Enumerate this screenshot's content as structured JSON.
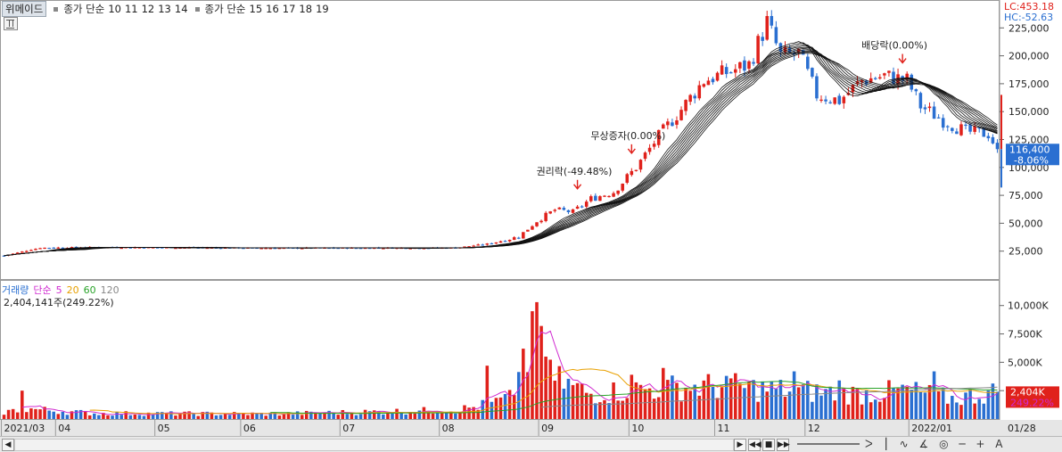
{
  "header": {
    "stock_name": "위메이드",
    "ma_label": "종가 단순",
    "ma_set1": [
      "10",
      "11",
      "12",
      "13",
      "14"
    ],
    "ma_set2": [
      "15",
      "16",
      "17",
      "18",
      "19"
    ],
    "lc": "LC:453.18",
    "hc": "HC:-52.63"
  },
  "volume_legend": {
    "title": "거래량",
    "ma_label": "단순",
    "periods": [
      "5",
      "20",
      "60",
      "120"
    ],
    "info": "2,404,141주(249.22%)"
  },
  "price_axis": {
    "ticks": [
      25000,
      50000,
      75000,
      100000,
      125000,
      150000,
      175000,
      200000,
      225000
    ],
    "tick_labels": [
      "25,000",
      "50,000",
      "75,000",
      "100,000",
      "125,000",
      "150,000",
      "175,000",
      "200,000",
      "225,000"
    ],
    "last_price": "116,400",
    "last_change": "-8.06%"
  },
  "volume_axis": {
    "ticks": [
      2500,
      5000,
      7500,
      10000
    ],
    "tick_labels": [
      "2,500K",
      "5,000K",
      "7,500K",
      "10,000K"
    ],
    "last_volume": "2,404K",
    "last_ratio": "249.22%"
  },
  "events": [
    {
      "label": "권리락(-49.48%)",
      "index": 127
    },
    {
      "label": "무상증자(0.00%)",
      "index": 139
    },
    {
      "label": "배당락(0.00%)",
      "index": 199
    }
  ],
  "x_axis_labels": [
    {
      "label": "2021/03",
      "index": 0
    },
    {
      "label": "04",
      "index": 12
    },
    {
      "label": "05",
      "index": 34
    },
    {
      "label": "06",
      "index": 53
    },
    {
      "label": "07",
      "index": 75
    },
    {
      "label": "08",
      "index": 97
    },
    {
      "label": "09",
      "index": 119
    },
    {
      "label": "10",
      "index": 139
    },
    {
      "label": "11",
      "index": 158
    },
    {
      "label": "12",
      "index": 178
    },
    {
      "label": "2022/01",
      "index": 201
    },
    {
      "label": "01/28",
      "index": 220
    }
  ],
  "chart_data": {
    "type": "candlestick",
    "price_keypoints": [
      [
        0,
        21000
      ],
      [
        8,
        28000
      ],
      [
        20,
        28500
      ],
      [
        60,
        27800
      ],
      [
        100,
        28000
      ],
      [
        108,
        32000
      ],
      [
        114,
        38000
      ],
      [
        118,
        52000
      ],
      [
        122,
        62000
      ],
      [
        126,
        60000
      ],
      [
        130,
        72000
      ],
      [
        135,
        78000
      ],
      [
        140,
        100000
      ],
      [
        145,
        128000
      ],
      [
        150,
        152000
      ],
      [
        155,
        178000
      ],
      [
        160,
        185000
      ],
      [
        165,
        192000
      ],
      [
        169,
        230000
      ],
      [
        172,
        200000
      ],
      [
        176,
        202000
      ],
      [
        180,
        165000
      ],
      [
        185,
        160000
      ],
      [
        190,
        178000
      ],
      [
        195,
        182000
      ],
      [
        200,
        178000
      ],
      [
        203,
        155000
      ],
      [
        208,
        142000
      ],
      [
        213,
        132000
      ],
      [
        218,
        130000
      ],
      [
        220,
        116400
      ]
    ],
    "volume_keypoints": [
      [
        0,
        600
      ],
      [
        5,
        900
      ],
      [
        20,
        500
      ],
      [
        60,
        450
      ],
      [
        100,
        800
      ],
      [
        105,
        1100
      ],
      [
        112,
        1800
      ],
      [
        116,
        5500
      ],
      [
        118,
        10000
      ],
      [
        120,
        3800
      ],
      [
        130,
        2200
      ],
      [
        140,
        2600
      ],
      [
        150,
        2800
      ],
      [
        160,
        2900
      ],
      [
        170,
        2600
      ],
      [
        180,
        2400
      ],
      [
        190,
        2200
      ],
      [
        200,
        2500
      ],
      [
        210,
        1800
      ],
      [
        220,
        2404
      ]
    ],
    "volume_peaks": [
      [
        4,
        2500
      ],
      [
        107,
        4700
      ],
      [
        115,
        6200
      ],
      [
        117,
        9500
      ],
      [
        118,
        10300
      ],
      [
        119,
        8200
      ],
      [
        120,
        5500
      ],
      [
        139,
        3900
      ],
      [
        146,
        4500
      ],
      [
        160,
        3800
      ],
      [
        175,
        4200
      ],
      [
        185,
        3400
      ],
      [
        206,
        4200
      ]
    ],
    "ylim": [
      0,
      250000
    ],
    "volume_ylim": [
      0,
      11000
    ],
    "last_close": 116400
  },
  "colors": {
    "up": "#e0211b",
    "down": "#2a6fd1",
    "ma5": "#d02ad0",
    "ma20": "#e8a000",
    "ma60": "#29a329",
    "ma120": "#888888"
  },
  "footer": {
    "tools": "ᐳ ⎮ ∿ ∡ ◎ ─ + A"
  }
}
